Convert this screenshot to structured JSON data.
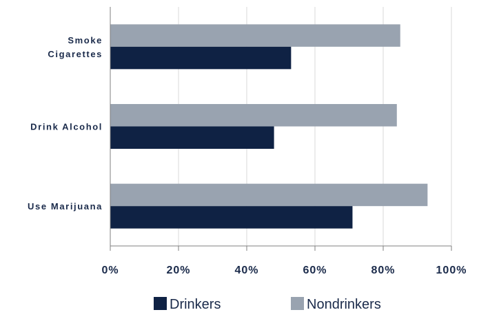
{
  "chart_data": {
    "type": "bar",
    "orientation": "horizontal",
    "categories": [
      [
        "Smoke",
        "Cigarettes"
      ],
      [
        "Drink Alcohol"
      ],
      [
        "Use Marijuana"
      ]
    ],
    "series": [
      {
        "name": "Drinkers",
        "color": "#0f2244",
        "values": [
          53,
          48,
          71
        ]
      },
      {
        "name": "Nondrinkers",
        "color": "#99a3b0",
        "values": [
          85,
          84,
          93
        ]
      }
    ],
    "xlim": [
      0,
      100
    ],
    "xticks": [
      0,
      20,
      40,
      60,
      80,
      100
    ],
    "xtick_labels": [
      "0%",
      "20%",
      "40%",
      "60%",
      "80%",
      "100%"
    ],
    "grid": "vertical",
    "legend": {
      "position": "bottom",
      "entries": [
        "Drinkers",
        "Nondrinkers"
      ]
    },
    "title": "",
    "xlabel": "",
    "ylabel": ""
  }
}
